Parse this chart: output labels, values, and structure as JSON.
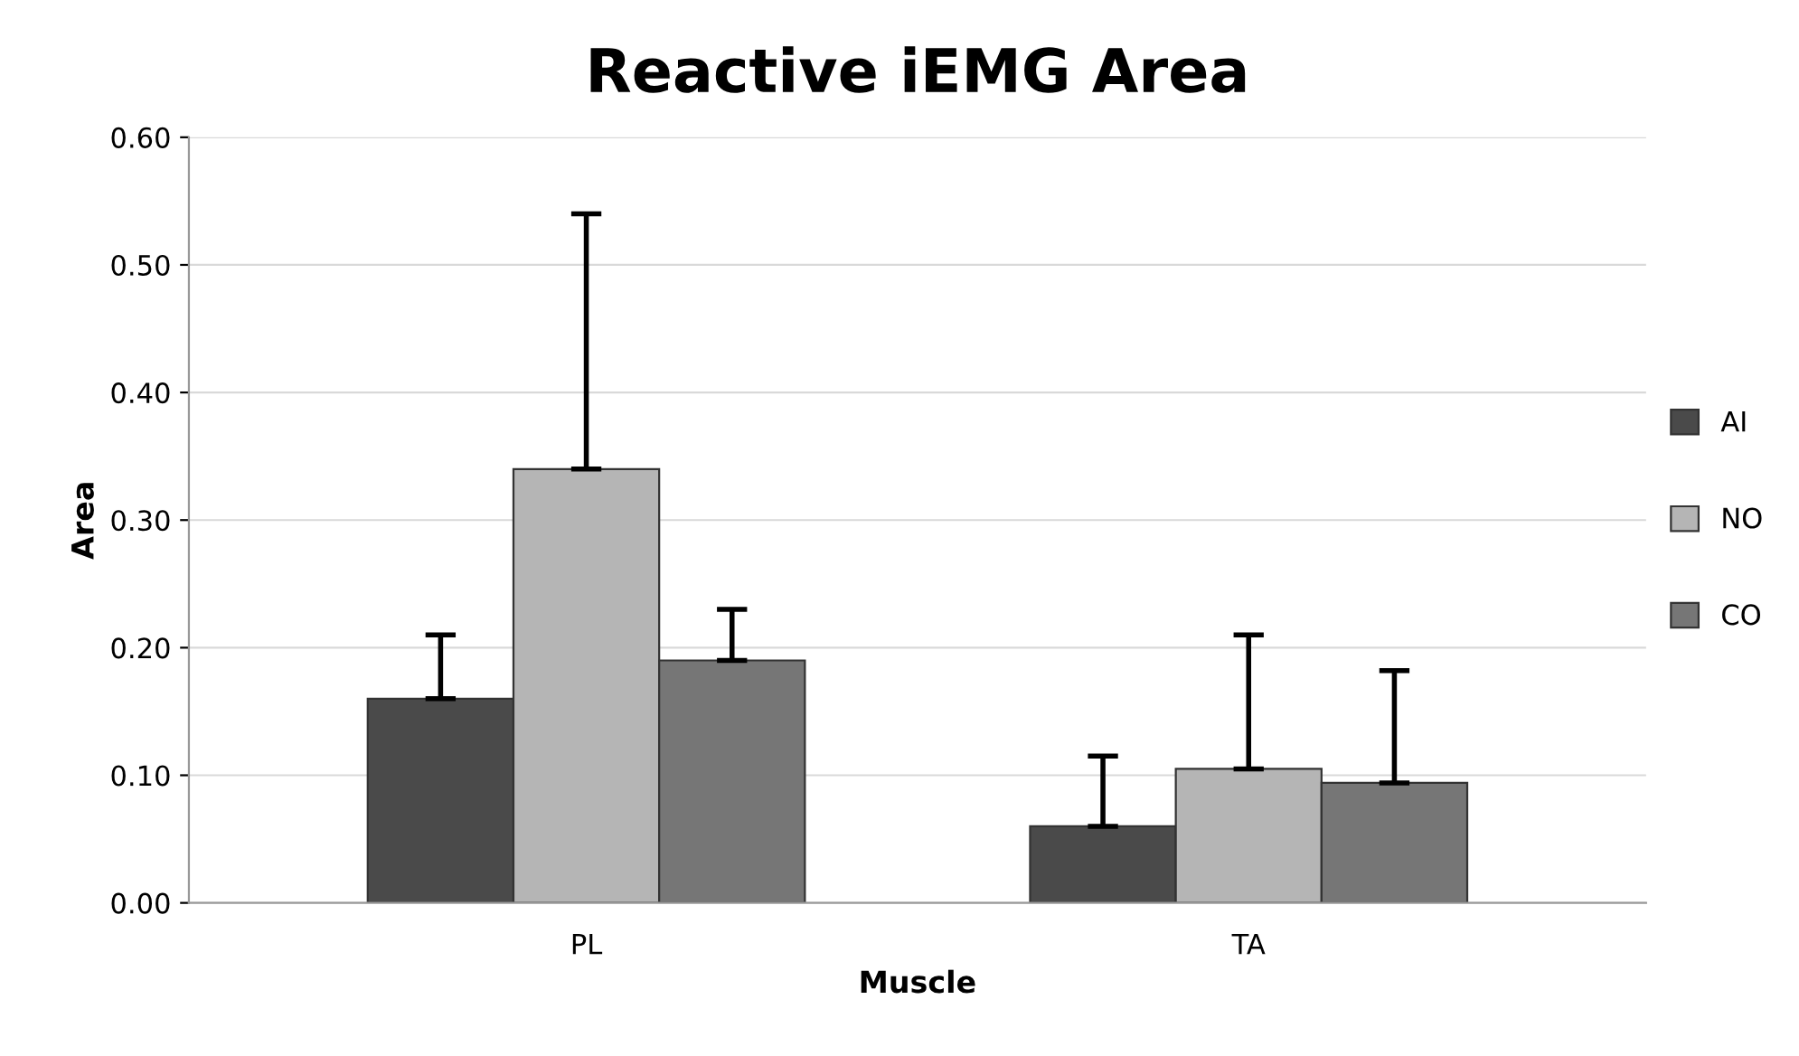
{
  "chart_data": {
    "type": "bar",
    "title": "Reactive iEMG Area",
    "xlabel": "Muscle",
    "ylabel": "Area",
    "categories": [
      "PL",
      "TA"
    ],
    "series": [
      {
        "name": "AI",
        "color": "#4a4a4a",
        "values": [
          0.16,
          0.06
        ],
        "errors": [
          [
            0.16,
            0.21
          ],
          [
            0.06,
            0.115
          ]
        ]
      },
      {
        "name": "NO",
        "color": "#b5b5b5",
        "values": [
          0.34,
          0.105
        ],
        "errors": [
          [
            0.34,
            0.54
          ],
          [
            0.105,
            0.21
          ]
        ]
      },
      {
        "name": "CO",
        "color": "#767676",
        "values": [
          0.19,
          0.094
        ],
        "errors": [
          [
            0.19,
            0.23
          ],
          [
            0.094,
            0.182
          ]
        ]
      }
    ],
    "ylim": [
      0,
      0.6
    ],
    "yticks": [
      {
        "value": 0,
        "label": "0.00"
      },
      {
        "value": 0.1,
        "label": "0.10"
      },
      {
        "value": 0.2,
        "label": "0.20"
      },
      {
        "value": 0.3,
        "label": "0.30"
      },
      {
        "value": 0.4,
        "label": "0.40"
      },
      {
        "value": 0.5,
        "label": "0.50"
      },
      {
        "value": 0.6,
        "label": "0.60"
      }
    ],
    "grid": "y",
    "legend": "right"
  }
}
